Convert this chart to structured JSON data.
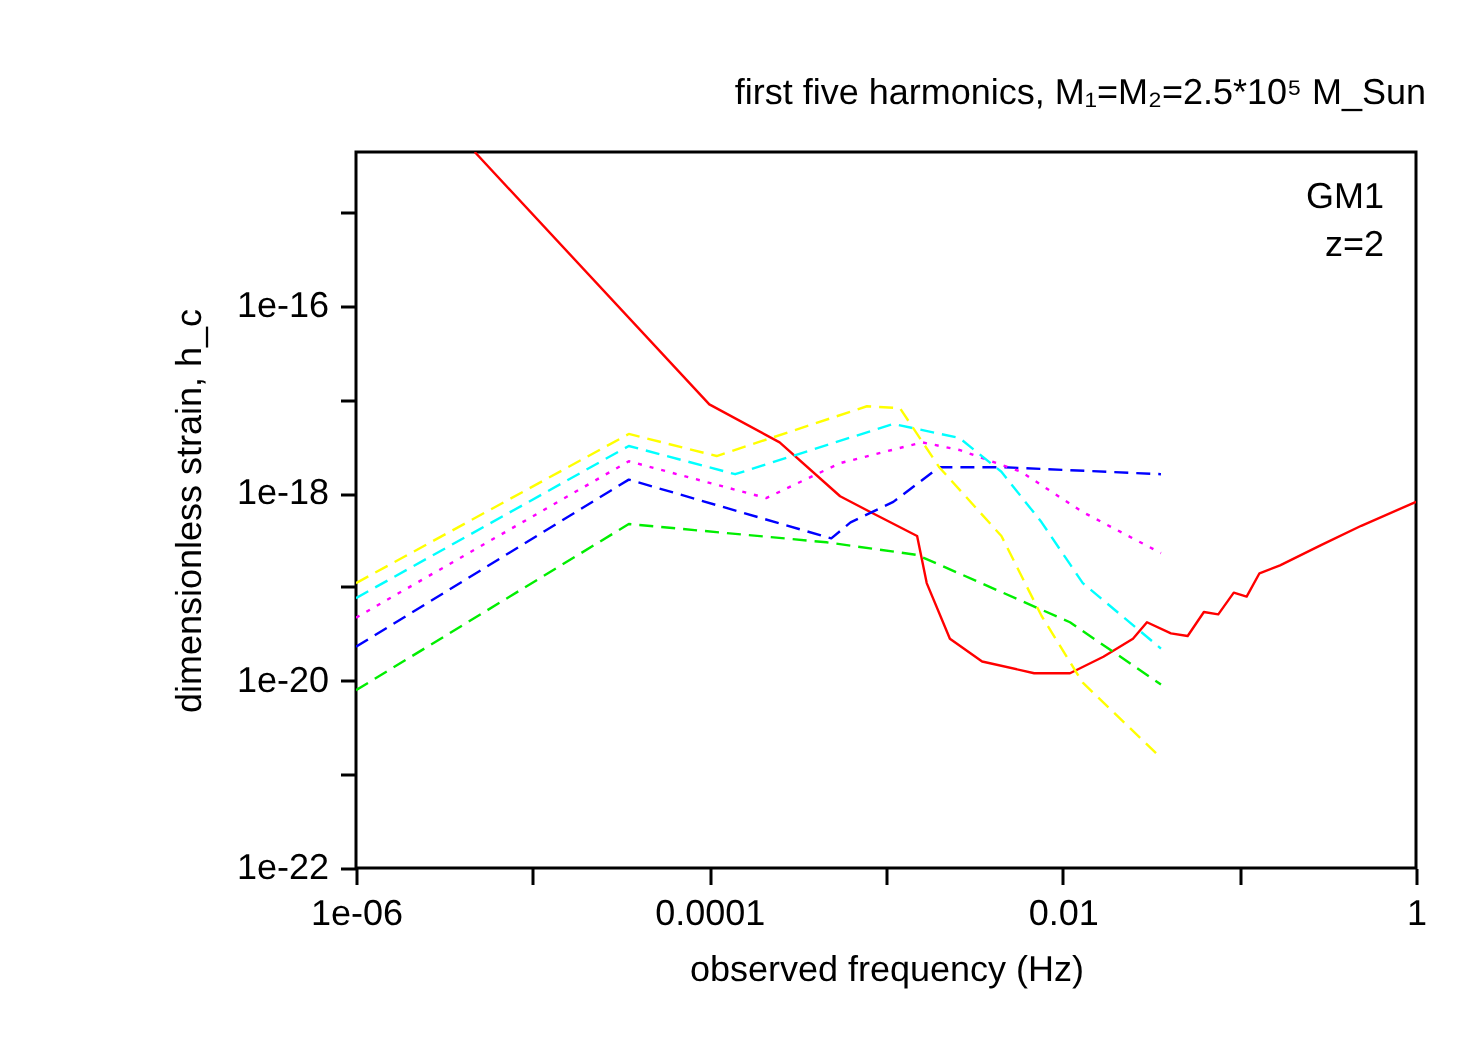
{
  "chart_data": {
    "type": "line",
    "title": "first five harmonics, M₁=M₂=2.5*10⁵ M_Sun",
    "xlabel": "observed frequency (Hz)",
    "ylabel": "dimensionless strain, h_c",
    "annotations": [
      "GM1",
      "z=2"
    ],
    "log": "xy",
    "grid": false,
    "xlim": [
      1e-06,
      1
    ],
    "ylim": [
      1e-22,
      4.4e-15
    ],
    "xticks": [
      {
        "value": 1e-06,
        "label": "1e-06"
      },
      {
        "value": 1e-05,
        "label": null
      },
      {
        "value": 0.0001,
        "label": "0.0001"
      },
      {
        "value": 0.001,
        "label": null
      },
      {
        "value": 0.01,
        "label": "0.01"
      },
      {
        "value": 0.1,
        "label": null
      },
      {
        "value": 1,
        "label": "1"
      }
    ],
    "yticks": [
      {
        "value": 1e-22,
        "label": "1e-22"
      },
      {
        "value": 1e-21,
        "label": null
      },
      {
        "value": 1e-20,
        "label": "1e-20"
      },
      {
        "value": 1e-19,
        "label": null
      },
      {
        "value": 1e-18,
        "label": "1e-18"
      },
      {
        "value": 1e-17,
        "label": null
      },
      {
        "value": 1e-16,
        "label": "1e-16"
      },
      {
        "value": 1e-15,
        "label": null
      }
    ],
    "series": [
      {
        "color": "#ff0000",
        "line_style": "solid",
        "x": [
          4.7e-06,
          0.0001,
          0.00025,
          0.00055,
          0.00078,
          0.0015,
          0.0017,
          0.0023,
          0.0035,
          0.0069,
          0.011,
          0.017,
          0.025,
          0.03,
          0.041,
          0.051,
          0.063,
          0.076,
          0.093,
          0.11,
          0.13,
          0.17,
          0.29,
          0.49,
          1
        ],
        "values": [
          4.4e-15,
          8.9e-18,
          3.5e-18,
          9.3e-19,
          6.6e-19,
          3.5e-19,
          1.1e-19,
          2.8e-20,
          1.6e-20,
          1.2e-20,
          1.2e-20,
          1.8e-20,
          2.8e-20,
          4.2e-20,
          3.2e-20,
          3e-20,
          5.4e-20,
          5.1e-20,
          8.7e-20,
          7.9e-20,
          1.4e-19,
          1.7e-19,
          2.8e-19,
          4.5e-19,
          8.1e-19
        ]
      },
      {
        "color": "#00ee00",
        "line_style": "dashed",
        "x": [
          1e-06,
          3.5e-05,
          0.00046,
          0.0015,
          0.011,
          0.036
        ],
        "values": [
          7.9e-21,
          4.7e-19,
          3e-19,
          2.2e-19,
          4.2e-20,
          9.1e-21
        ]
      },
      {
        "color": "#0000ff",
        "line_style": "dashed",
        "x": [
          1e-06,
          3.5e-05,
          0.00049,
          0.00063,
          0.0011,
          0.002,
          0.0045,
          0.036
        ],
        "values": [
          2.3e-20,
          1.4e-18,
          3.3e-19,
          4.9e-19,
          8.1e-19,
          1.9e-18,
          1.9e-18,
          1.6e-18
        ]
      },
      {
        "color": "#ff00ff",
        "line_style": "dotted",
        "x": [
          1e-06,
          3.5e-05,
          0.00021,
          0.00055,
          0.0016,
          0.0026,
          0.0058,
          0.013,
          0.036
        ],
        "values": [
          4.7e-20,
          2.2e-18,
          8.9e-19,
          2.1e-18,
          3.5e-18,
          2.9e-18,
          1.7e-18,
          6.3e-19,
          2.3e-19
        ]
      },
      {
        "color": "#00ffff",
        "line_style": "dashed",
        "x": [
          1e-06,
          3.5e-05,
          0.00014,
          0.0011,
          0.0026,
          0.0045,
          0.0076,
          0.013,
          0.036
        ],
        "values": [
          7.6e-20,
          3.2e-18,
          1.6e-18,
          5.5e-18,
          3.9e-18,
          1.7e-18,
          4.9e-19,
          1.1e-19,
          2.2e-20
        ]
      },
      {
        "color": "#ffff00",
        "line_style": "dashed",
        "x": [
          1e-06,
          3.5e-05,
          0.00011,
          0.00078,
          0.0012,
          0.002,
          0.0045,
          0.0076,
          0.013,
          0.036
        ],
        "values": [
          1.1e-19,
          4.3e-18,
          2.5e-18,
          8.5e-18,
          8.1e-18,
          1.9e-18,
          3.5e-19,
          4.9e-20,
          9.5e-21,
          1.5e-21
        ]
      }
    ]
  }
}
